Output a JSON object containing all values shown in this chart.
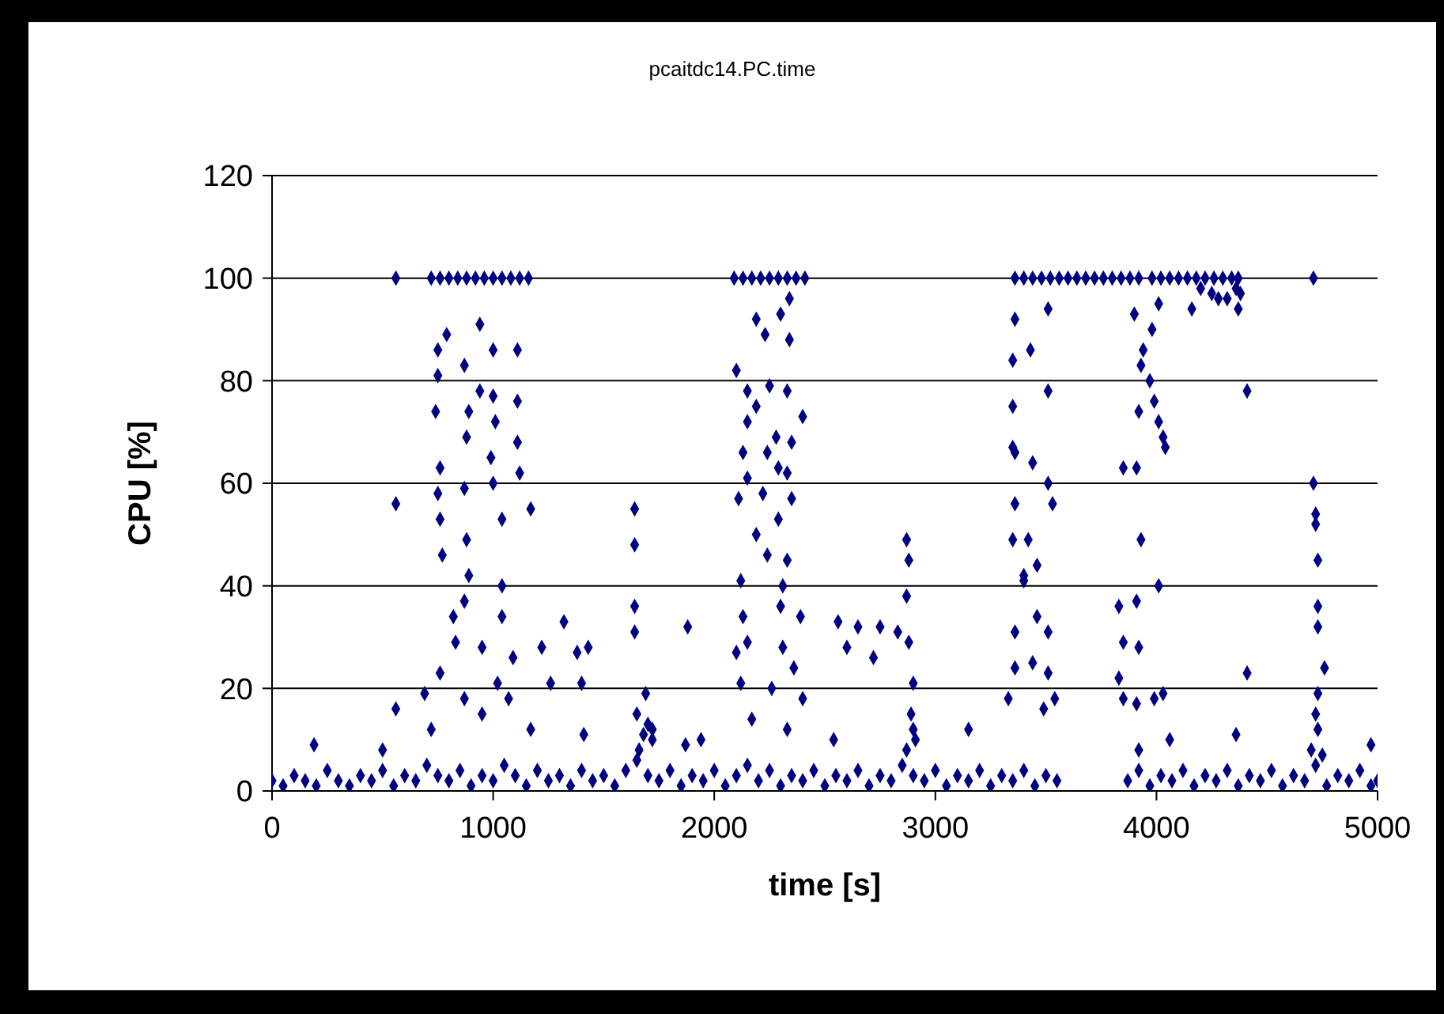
{
  "chart_data": {
    "type": "scatter",
    "title": "pcaitdc14.PC.time",
    "xlabel": "time [s]",
    "ylabel": "CPU  [%]",
    "color": "#000080",
    "marker": "diamond",
    "grid": "y",
    "legend": false,
    "xlim": [
      0,
      5000
    ],
    "xticks": [
      0,
      1000,
      2000,
      3000,
      4000,
      5000
    ],
    "ylim": [
      0,
      120
    ],
    "yticks": [
      0,
      20,
      40,
      60,
      80,
      100,
      120
    ],
    "x": [
      0,
      50,
      100,
      150,
      200,
      250,
      300,
      350,
      400,
      450,
      500,
      550,
      600,
      650,
      700,
      750,
      800,
      850,
      900,
      950,
      1000,
      1050,
      1100,
      1150,
      1200,
      1250,
      1300,
      1350,
      1400,
      1450,
      1500,
      1550,
      1600,
      1650,
      1700,
      1750,
      1800,
      1850,
      1900,
      1950,
      2000,
      2050,
      2100,
      2150,
      2200,
      2250,
      2300,
      2350,
      2400,
      2450,
      2500,
      2550,
      2600,
      2650,
      2700,
      2750,
      2800,
      2850,
      2900,
      2950,
      3000,
      3050,
      3100,
      3150,
      3200,
      3250,
      3300,
      3350,
      3400,
      3450,
      3500,
      3550,
      3870,
      3920,
      3970,
      4020,
      4070,
      4120,
      4170,
      4220,
      4270,
      4320,
      4370,
      4420,
      4470,
      4520,
      4570,
      4620,
      4670,
      4720,
      4770,
      4820,
      4870,
      4920,
      4970,
      5000,
      1660,
      1680,
      1700,
      1720,
      2870,
      2890,
      2910,
      4700,
      4730,
      4750,
      560,
      720,
      760,
      800,
      840,
      880,
      920,
      960,
      1000,
      1040,
      1080,
      1120,
      1160,
      2090,
      2130,
      2170,
      2210,
      2250,
      2290,
      2330,
      2370,
      2410,
      3360,
      3400,
      3440,
      3480,
      3520,
      3560,
      3600,
      3640,
      3680,
      3720,
      3760,
      3800,
      3840,
      3880,
      3920,
      3980,
      4020,
      4060,
      4100,
      4140,
      4180,
      4220,
      4260,
      4300,
      4340,
      4370,
      4710,
      4200,
      4250,
      4320,
      4360,
      4380,
      940,
      790,
      750,
      1000,
      1110,
      870,
      750,
      940,
      1000,
      1110,
      740,
      890,
      1010,
      1110,
      880,
      990,
      760,
      1120,
      750,
      870,
      1000,
      560,
      760,
      1040,
      1170,
      1640,
      1640,
      880,
      770,
      890,
      1040,
      870,
      1640,
      1640,
      820,
      1040,
      1320,
      830,
      950,
      1090,
      1220,
      1380,
      1430,
      760,
      690,
      1020,
      1260,
      1400,
      560,
      870,
      1070,
      1690,
      1650,
      720,
      950,
      1170,
      1410,
      190,
      500,
      1720,
      2340,
      2190,
      2300,
      2230,
      2340,
      2100,
      2150,
      2250,
      2330,
      2190,
      2400,
      2150,
      2280,
      2350,
      2130,
      2240,
      2290,
      2330,
      2150,
      2110,
      2220,
      2350,
      2290,
      2190,
      2240,
      2330,
      2870,
      2880,
      2120,
      2310,
      2300,
      2130,
      2390,
      2870,
      1880,
      2560,
      2650,
      2750,
      2830,
      2600,
      2720,
      2880,
      2150,
      2100,
      2310,
      2360,
      2120,
      2260,
      2400,
      2900,
      2170,
      2330,
      2540,
      2900,
      3150,
      1870,
      1940,
      3360,
      3350,
      3350,
      3350,
      3360,
      3350,
      3400,
      3360,
      3360,
      3330,
      3510,
      3430,
      3510,
      3360,
      3440,
      3510,
      3530,
      3420,
      3460,
      3400,
      3460,
      3510,
      3440,
      3510,
      3490,
      3540,
      3900,
      4010,
      3980,
      3940,
      3930,
      3970,
      3990,
      3920,
      4010,
      4030,
      4040,
      3850,
      3910,
      4160,
      4280,
      4370,
      4410,
      3930,
      4010,
      3830,
      3910,
      3850,
      3920,
      3830,
      3850,
      3910,
      3990,
      4030,
      4060,
      4410,
      4360,
      3920,
      4710,
      4720,
      4720,
      4730,
      4730,
      4730,
      4760,
      4730,
      4720,
      4970
    ],
    "values": [
      2,
      1,
      3,
      2,
      1,
      4,
      2,
      1,
      3,
      2,
      4,
      1,
      3,
      2,
      5,
      3,
      2,
      4,
      1,
      3,
      2,
      5,
      3,
      1,
      4,
      2,
      3,
      1,
      4,
      2,
      3,
      1,
      4,
      6,
      3,
      2,
      4,
      1,
      3,
      2,
      4,
      1,
      3,
      5,
      2,
      4,
      1,
      3,
      2,
      4,
      1,
      3,
      2,
      4,
      1,
      3,
      2,
      5,
      3,
      2,
      4,
      1,
      3,
      2,
      4,
      1,
      3,
      2,
      4,
      1,
      3,
      2,
      2,
      4,
      1,
      3,
      2,
      4,
      1,
      3,
      2,
      4,
      1,
      3,
      2,
      4,
      1,
      3,
      2,
      5,
      1,
      3,
      2,
      4,
      1,
      2,
      8,
      11,
      13,
      10,
      8,
      15,
      10,
      8,
      12,
      7,
      100,
      100,
      100,
      100,
      100,
      100,
      100,
      100,
      100,
      100,
      100,
      100,
      100,
      100,
      100,
      100,
      100,
      100,
      100,
      100,
      100,
      100,
      100,
      100,
      100,
      100,
      100,
      100,
      100,
      100,
      100,
      100,
      100,
      100,
      100,
      100,
      100,
      100,
      100,
      100,
      100,
      100,
      100,
      100,
      100,
      100,
      100,
      100,
      100,
      98,
      97,
      96,
      98,
      97,
      91,
      89,
      86,
      86,
      86,
      83,
      81,
      78,
      77,
      76,
      74,
      74,
      72,
      68,
      69,
      65,
      63,
      62,
      58,
      59,
      60,
      56,
      53,
      53,
      55,
      55,
      48,
      49,
      46,
      42,
      40,
      37,
      36,
      31,
      34,
      34,
      33,
      29,
      28,
      26,
      28,
      27,
      28,
      23,
      19,
      21,
      21,
      21,
      16,
      18,
      18,
      19,
      15,
      12,
      15,
      12,
      11,
      9,
      8,
      12,
      96,
      92,
      93,
      89,
      88,
      82,
      78,
      79,
      78,
      75,
      73,
      72,
      69,
      68,
      66,
      66,
      63,
      62,
      61,
      57,
      58,
      57,
      53,
      50,
      46,
      45,
      49,
      45,
      41,
      40,
      36,
      34,
      34,
      38,
      32,
      33,
      32,
      32,
      31,
      28,
      26,
      29,
      29,
      27,
      28,
      24,
      21,
      20,
      18,
      21,
      14,
      12,
      10,
      12,
      12,
      9,
      10,
      92,
      84,
      75,
      67,
      56,
      49,
      42,
      31,
      24,
      18,
      94,
      86,
      78,
      66,
      64,
      60,
      56,
      49,
      44,
      41,
      34,
      31,
      25,
      23,
      16,
      18,
      93,
      95,
      90,
      86,
      83,
      80,
      76,
      74,
      72,
      69,
      67,
      63,
      63,
      94,
      96,
      94,
      78,
      49,
      40,
      36,
      37,
      29,
      28,
      22,
      18,
      17,
      18,
      19,
      10,
      23,
      11,
      8,
      60,
      54,
      52,
      45,
      36,
      32,
      24,
      19,
      15,
      9
    ]
  }
}
